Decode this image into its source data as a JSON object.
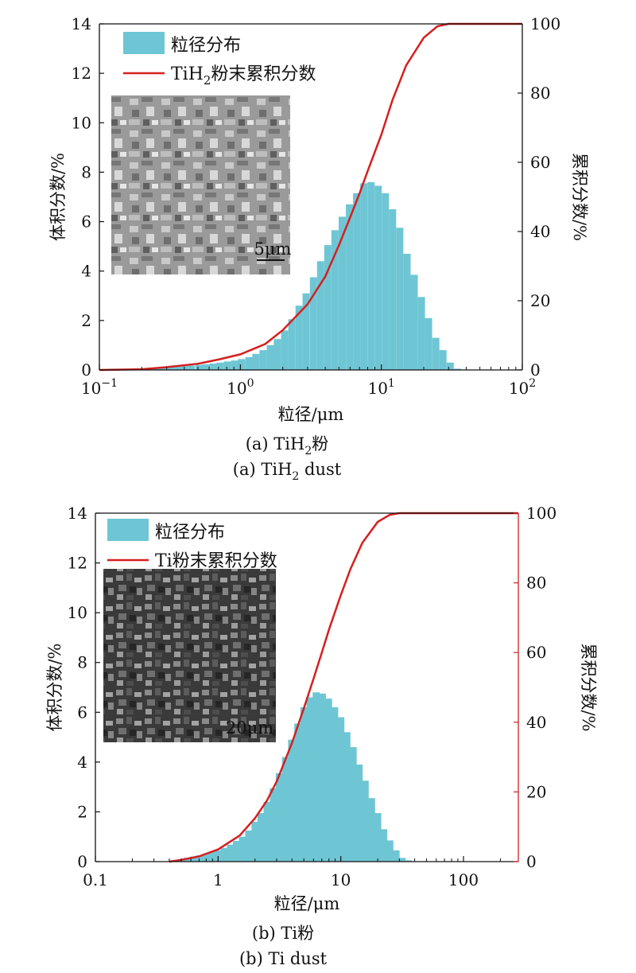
{
  "chart_data": [
    {
      "type": "bar",
      "caption_line1_prefix": "(a) TiH",
      "caption_line1_sub": "2",
      "caption_line1_suffix": "粉",
      "caption_line2_prefix": "(a) TiH",
      "caption_line2_sub": "2",
      "caption_line2_suffix": " dust",
      "xlabel": "粒径/μm",
      "ylabel_left": "体积分数/%",
      "ylabel_right": "累积分数/%",
      "x_scale": "log",
      "xlim": [
        0.1,
        100
      ],
      "ylim_left": [
        0,
        14
      ],
      "ylim_right": [
        0,
        100
      ],
      "x_tick_labels": [
        {
          "value": 0.1,
          "base": "10",
          "exp": "−1"
        },
        {
          "value": 1,
          "base": "10",
          "exp": "0"
        },
        {
          "value": 10,
          "base": "10",
          "exp": "1"
        },
        {
          "value": 100,
          "base": "10",
          "exp": "2"
        }
      ],
      "y_ticks_left": [
        0,
        2,
        4,
        6,
        8,
        10,
        12,
        14
      ],
      "y_ticks_right": [
        0,
        20,
        40,
        60,
        80,
        100
      ],
      "legend_position": "top-left",
      "legend": {
        "bar_label": "粒径分布",
        "line_prefix": "TiH",
        "line_sub": "2",
        "line_suffix": "粉末累积分数"
      },
      "inset_scale_label": "5μm",
      "series": [
        {
          "name": "粒径分布",
          "kind": "bar",
          "x": [
            0.22,
            0.25,
            0.28,
            0.32,
            0.36,
            0.4,
            0.45,
            0.51,
            0.57,
            0.64,
            0.72,
            0.81,
            0.91,
            1.02,
            1.15,
            1.29,
            1.45,
            1.63,
            1.83,
            2.06,
            2.32,
            2.61,
            2.93,
            3.3,
            3.71,
            4.17,
            4.69,
            5.28,
            5.94,
            6.68,
            7.51,
            8.45,
            9.5,
            10.69,
            12.02,
            13.52,
            15.21,
            17.11,
            19.24,
            21.64,
            24.35,
            27.38,
            30.8,
            34.65
          ],
          "values": [
            0.05,
            0.08,
            0.1,
            0.12,
            0.14,
            0.16,
            0.18,
            0.21,
            0.23,
            0.26,
            0.3,
            0.34,
            0.38,
            0.44,
            0.52,
            0.65,
            0.8,
            1.0,
            1.25,
            1.6,
            2.05,
            2.6,
            3.1,
            3.75,
            4.4,
            5.05,
            5.65,
            6.2,
            6.7,
            7.15,
            7.55,
            7.6,
            7.45,
            7.15,
            6.5,
            5.75,
            4.7,
            3.85,
            2.95,
            2.1,
            1.3,
            0.8,
            0.3,
            0.05
          ]
        },
        {
          "name": "TiH2粉末累积分数",
          "kind": "line",
          "color": "#d61f1f",
          "x": [
            0.1,
            0.2,
            0.3,
            0.5,
            0.7,
            1.0,
            1.5,
            2.0,
            3.0,
            4.0,
            5.0,
            6.0,
            7.0,
            8.0,
            10.0,
            12.0,
            15.0,
            20.0,
            25.0,
            30.0,
            40.0,
            100.0
          ],
          "values": [
            0,
            0.2,
            0.8,
            1.8,
            3.0,
            4.5,
            7.5,
            11.5,
            19.0,
            27.0,
            36.0,
            44.0,
            51.0,
            57.5,
            68.0,
            78.0,
            88.0,
            96.0,
            99.3,
            100,
            100,
            100
          ]
        }
      ]
    },
    {
      "type": "bar",
      "caption_line1": "(b) Ti粉",
      "caption_line2": "(b) Ti dust",
      "xlabel": "粒径/μm",
      "ylabel_left": "体积分数/%",
      "ylabel_right": "累积分数/%",
      "x_scale": "log",
      "xlim": [
        0.1,
        280
      ],
      "ylim_left": [
        0,
        14
      ],
      "ylim_right": [
        0,
        100
      ],
      "x_ticks": [
        0.1,
        1,
        10,
        100
      ],
      "x_tick_labels": [
        "0.1",
        "1",
        "10",
        "100"
      ],
      "y_ticks_left": [
        0,
        2,
        4,
        6,
        8,
        10,
        12,
        14
      ],
      "y_ticks_right": [
        0,
        20,
        40,
        60,
        80,
        100
      ],
      "legend_position": "top-left",
      "legend": {
        "bar_label": "粒径分布",
        "line_label": "Ti粉末累积分数"
      },
      "inset_scale_label": "20μm",
      "series": [
        {
          "name": "粒径分布",
          "kind": "bar",
          "x": [
            0.45,
            0.5,
            0.56,
            0.63,
            0.71,
            0.79,
            0.89,
            1.0,
            1.12,
            1.26,
            1.41,
            1.58,
            1.78,
            2.0,
            2.24,
            2.51,
            2.82,
            3.16,
            3.55,
            3.98,
            4.47,
            5.01,
            5.62,
            6.31,
            7.08,
            7.94,
            8.91,
            10.0,
            11.2,
            12.6,
            14.1,
            15.8,
            17.8,
            20.0,
            22.4,
            25.1,
            28.2,
            31.6,
            35.5
          ],
          "values": [
            0.05,
            0.1,
            0.15,
            0.2,
            0.25,
            0.3,
            0.38,
            0.45,
            0.55,
            0.68,
            0.83,
            1.0,
            1.25,
            1.6,
            1.95,
            2.4,
            2.95,
            3.55,
            4.2,
            4.9,
            5.55,
            6.2,
            6.6,
            6.8,
            6.75,
            6.55,
            6.2,
            5.8,
            5.2,
            4.6,
            3.9,
            3.25,
            2.55,
            1.95,
            1.3,
            0.85,
            0.45,
            0.15,
            0.05
          ]
        },
        {
          "name": "Ti粉末累积分数",
          "kind": "line",
          "color": "#d61f1f",
          "x": [
            0.4,
            0.5,
            0.7,
            1.0,
            1.5,
            2.0,
            2.5,
            3.0,
            4.0,
            5.0,
            6.0,
            7.0,
            8.0,
            10.0,
            12.0,
            15.0,
            20.0,
            25.0,
            30.0,
            40.0,
            100.0,
            280.0
          ],
          "values": [
            0,
            0.5,
            1.5,
            3.5,
            7.5,
            12.5,
            17.5,
            23.0,
            34.0,
            44.0,
            52.5,
            60.0,
            66.5,
            76.5,
            84.0,
            91.5,
            97.5,
            99.5,
            100,
            100,
            100,
            100
          ]
        }
      ]
    }
  ]
}
